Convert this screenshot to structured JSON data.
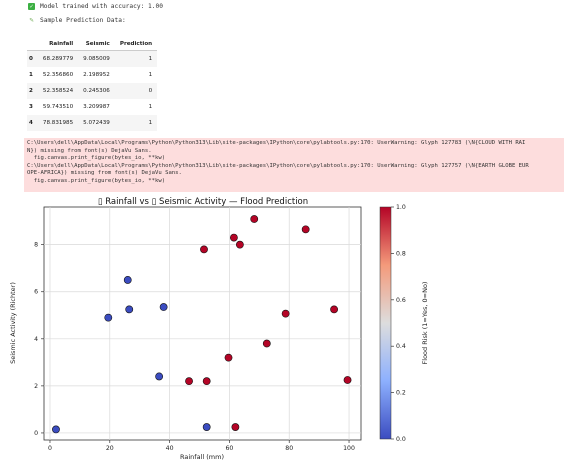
{
  "status": {
    "trained_text": "Model trained with accuracy: 1.00",
    "sample_text": "Sample Prediction Data:"
  },
  "table": {
    "columns": [
      "Rainfall",
      "Seismic",
      "Prediction"
    ],
    "rows": [
      {
        "index": "0",
        "rainfall": "68.289779",
        "seismic": "9.085009",
        "prediction": "1"
      },
      {
        "index": "1",
        "rainfall": "52.356860",
        "seismic": "2.198952",
        "prediction": "1"
      },
      {
        "index": "2",
        "rainfall": "52.358524",
        "seismic": "0.245306",
        "prediction": "0"
      },
      {
        "index": "3",
        "rainfall": "59.743510",
        "seismic": "3.209987",
        "prediction": "1"
      },
      {
        "index": "4",
        "rainfall": "78.831985",
        "seismic": "5.072439",
        "prediction": "1"
      }
    ]
  },
  "warnings": [
    "C:\\Users\\dell\\AppData\\Local\\Programs\\Python\\Python313\\Lib\\site-packages\\IPython\\core\\pylabtools.py:170: UserWarning: Glyph 127783 (\\N{CLOUD WITH RAI",
    "N}) missing from font(s) DejaVu Sans.",
    "  fig.canvas.print_figure(bytes_io, **kw)",
    "C:\\Users\\dell\\AppData\\Local\\Programs\\Python\\Python313\\Lib\\site-packages\\IPython\\core\\pylabtools.py:170: UserWarning: Glyph 127757 (\\N{EARTH GLOBE EUR",
    "OPE-AFRICA}) missing from font(s) DejaVu Sans.",
    "  fig.canvas.print_figure(bytes_io, **kw)"
  ],
  "colors": {
    "flood_yes": "#b40426",
    "flood_no": "#3b4cc0",
    "check": "#3cb043",
    "warning_bg": "#fddddd"
  },
  "chart_data": {
    "type": "scatter",
    "title": "▯ Rainfall vs ▯ Seismic Activity — Flood Prediction",
    "xlabel": "Rainfall (mm)",
    "ylabel": "Seismic Activity (Richter)",
    "xlim": [
      -2,
      104
    ],
    "ylim": [
      -0.3,
      9.6
    ],
    "xticks": [
      0,
      20,
      40,
      60,
      80,
      100
    ],
    "yticks": [
      0,
      2,
      4,
      6,
      8
    ],
    "grid": true,
    "colorbar": {
      "label": "Flood Risk (1=Yes, 0=No)",
      "range": [
        0.0,
        1.0
      ],
      "ticks": [
        "0.0",
        "0.2",
        "0.4",
        "0.6",
        "0.8",
        "1.0"
      ],
      "colormap": "coolwarm"
    },
    "points": [
      {
        "x": 2,
        "y": 0.15,
        "flood": 0
      },
      {
        "x": 19.5,
        "y": 4.9,
        "flood": 0
      },
      {
        "x": 26,
        "y": 6.5,
        "flood": 0
      },
      {
        "x": 26.5,
        "y": 5.25,
        "flood": 0
      },
      {
        "x": 36.5,
        "y": 2.4,
        "flood": 0
      },
      {
        "x": 38,
        "y": 5.35,
        "flood": 0
      },
      {
        "x": 52.4,
        "y": 0.25,
        "flood": 0
      },
      {
        "x": 46.5,
        "y": 2.2,
        "flood": 1
      },
      {
        "x": 52.4,
        "y": 2.2,
        "flood": 1
      },
      {
        "x": 51.5,
        "y": 7.8,
        "flood": 1
      },
      {
        "x": 59.7,
        "y": 3.2,
        "flood": 1
      },
      {
        "x": 61.5,
        "y": 8.3,
        "flood": 1
      },
      {
        "x": 62,
        "y": 0.25,
        "flood": 1
      },
      {
        "x": 63.5,
        "y": 8.0,
        "flood": 1
      },
      {
        "x": 68.3,
        "y": 9.09,
        "flood": 1
      },
      {
        "x": 72.5,
        "y": 3.8,
        "flood": 1
      },
      {
        "x": 78.8,
        "y": 5.07,
        "flood": 1
      },
      {
        "x": 85.5,
        "y": 8.65,
        "flood": 1
      },
      {
        "x": 95,
        "y": 5.25,
        "flood": 1
      },
      {
        "x": 99.5,
        "y": 2.25,
        "flood": 1
      }
    ]
  }
}
